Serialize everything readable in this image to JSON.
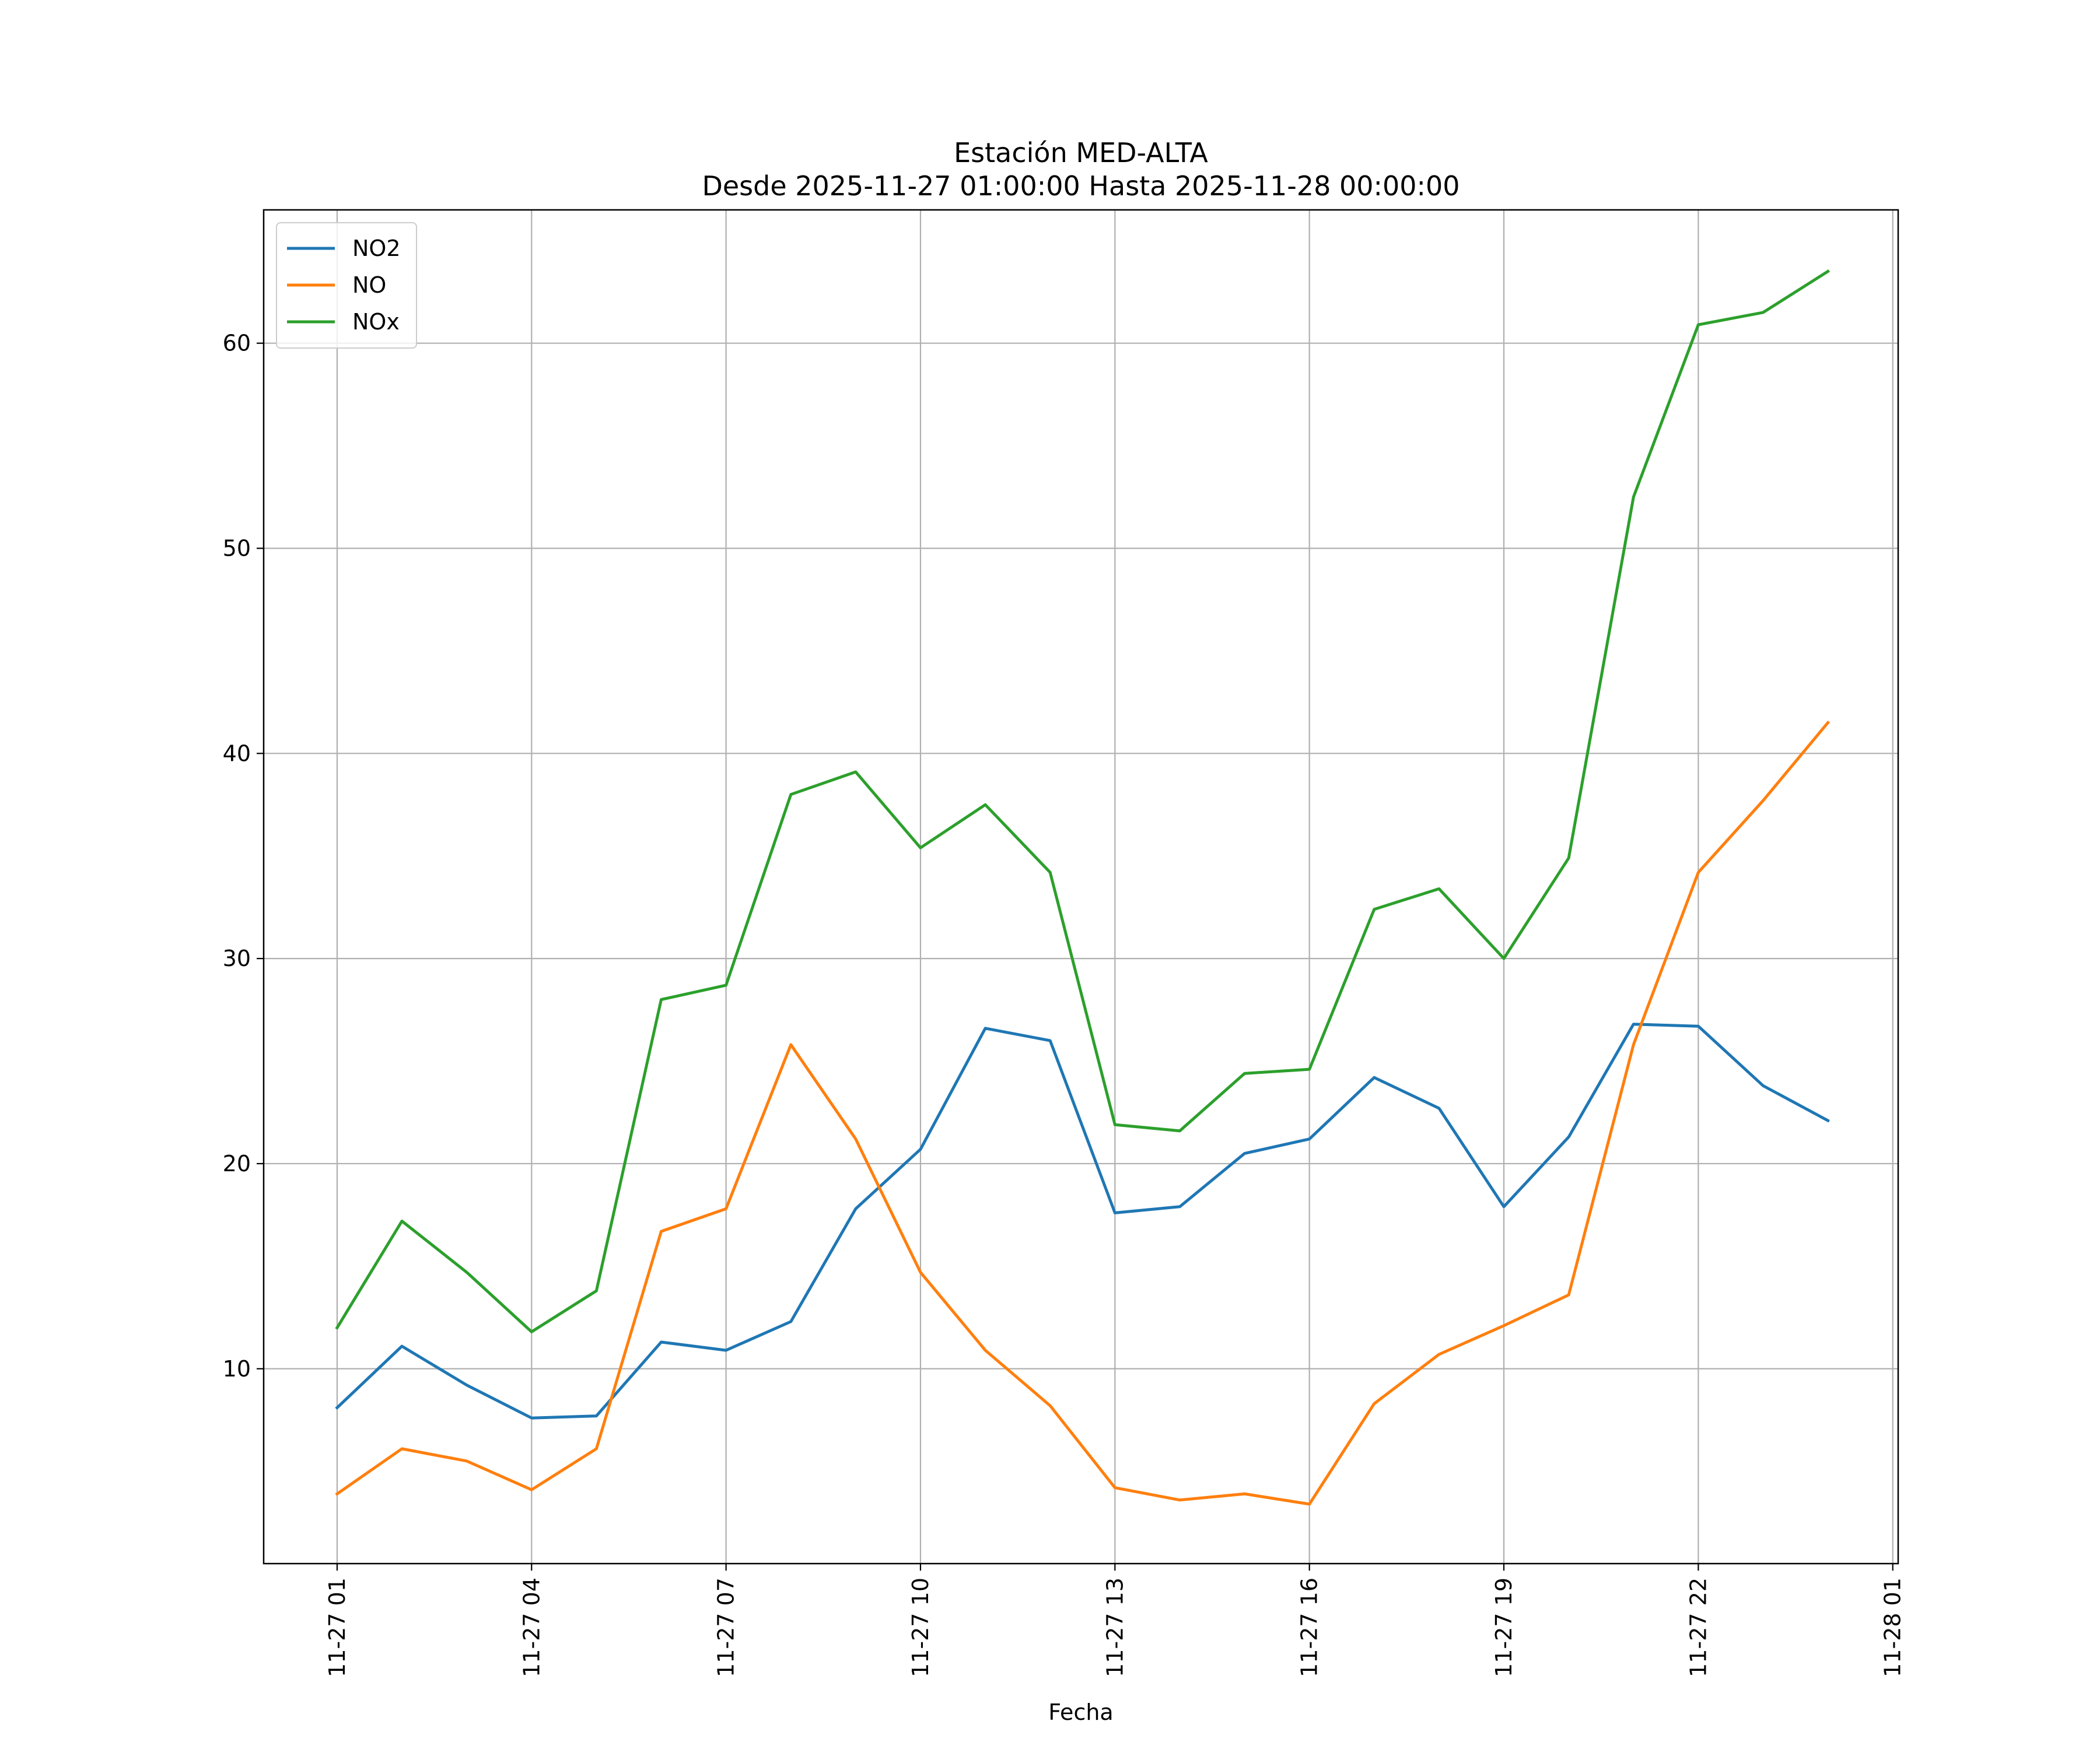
{
  "chart_data": {
    "type": "line",
    "title": "Estación MED-ALTA",
    "subtitle": "Desde 2025-11-27 01:00:00 Hasta 2025-11-28 00:00:00",
    "xlabel": "Fecha",
    "ylabel": "",
    "grid": true,
    "legend_position": "top-left",
    "x": [
      "2025-11-27 01:00",
      "2025-11-27 02:00",
      "2025-11-27 03:00",
      "2025-11-27 04:00",
      "2025-11-27 05:00",
      "2025-11-27 06:00",
      "2025-11-27 07:00",
      "2025-11-27 08:00",
      "2025-11-27 09:00",
      "2025-11-27 10:00",
      "2025-11-27 11:00",
      "2025-11-27 12:00",
      "2025-11-27 13:00",
      "2025-11-27 14:00",
      "2025-11-27 15:00",
      "2025-11-27 16:00",
      "2025-11-27 17:00",
      "2025-11-27 18:00",
      "2025-11-27 19:00",
      "2025-11-27 20:00",
      "2025-11-27 21:00",
      "2025-11-27 22:00",
      "2025-11-27 23:00",
      "2025-11-28 00:00"
    ],
    "xlim": [
      "2025-11-26 23:52",
      "2025-11-28 01:05"
    ],
    "ylim": [
      0.5,
      66.5
    ],
    "x_tick_labels": [
      "11-27 01",
      "11-27 04",
      "11-27 07",
      "11-27 10",
      "11-27 13",
      "11-27 16",
      "11-27 19",
      "11-27 22",
      "11-28 01"
    ],
    "x_tick_values": [
      "2025-11-27 01:00",
      "2025-11-27 04:00",
      "2025-11-27 07:00",
      "2025-11-27 10:00",
      "2025-11-27 13:00",
      "2025-11-27 16:00",
      "2025-11-27 19:00",
      "2025-11-27 22:00",
      "2025-11-28 01:00"
    ],
    "y_ticks": [
      10,
      20,
      30,
      40,
      50,
      60
    ],
    "series": [
      {
        "name": "NO2",
        "color": "#1f77b4",
        "values": [
          8.1,
          11.1,
          9.2,
          7.6,
          7.7,
          11.3,
          10.9,
          12.3,
          17.8,
          20.7,
          26.6,
          26.0,
          17.6,
          17.9,
          20.5,
          21.2,
          24.2,
          22.7,
          17.9,
          21.3,
          26.8,
          26.7,
          23.8,
          22.1
        ]
      },
      {
        "name": "NO",
        "color": "#ff7f0e",
        "values": [
          3.9,
          6.1,
          5.5,
          4.1,
          6.1,
          16.7,
          17.8,
          25.8,
          21.2,
          14.7,
          10.9,
          8.2,
          4.2,
          3.6,
          3.9,
          3.4,
          8.3,
          10.7,
          12.1,
          13.6,
          25.8,
          34.2,
          37.7,
          41.5
        ]
      },
      {
        "name": "NOx",
        "color": "#2ca02c",
        "values": [
          12.0,
          17.2,
          14.7,
          11.8,
          13.8,
          28.0,
          28.7,
          38.0,
          39.1,
          35.4,
          37.5,
          34.2,
          21.9,
          21.6,
          24.4,
          24.6,
          32.4,
          33.4,
          30.0,
          34.9,
          52.5,
          60.9,
          61.5,
          63.5
        ]
      }
    ]
  }
}
